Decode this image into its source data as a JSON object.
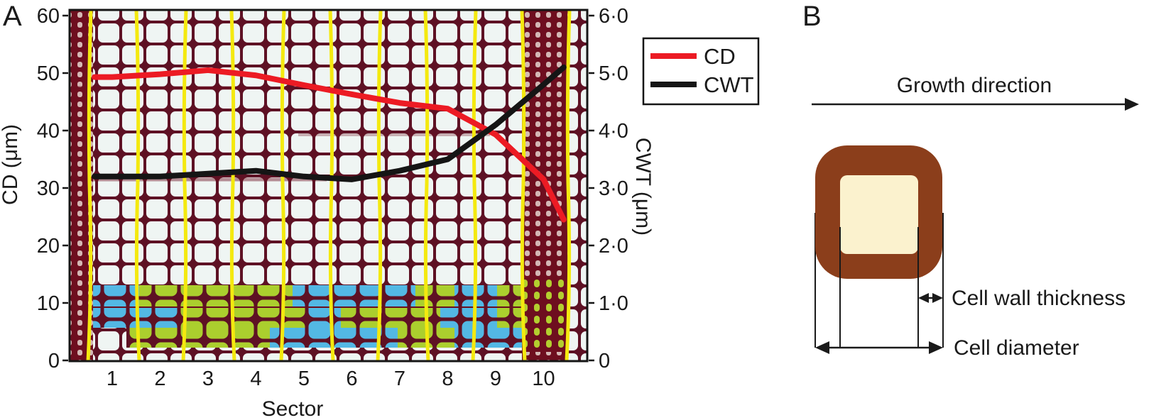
{
  "panel_a": {
    "label": "A",
    "y_left": {
      "title": "CD (μm)",
      "ticks": [
        "60",
        "50",
        "40",
        "30",
        "20",
        "10",
        "0"
      ]
    },
    "y_right": {
      "title": "CWT (μm)",
      "ticks": [
        "6·0",
        "5·0",
        "4·0",
        "3·0",
        "2·0",
        "1·0",
        "0"
      ]
    },
    "x_axis": {
      "title": "Sector",
      "ticks": [
        "1",
        "2",
        "3",
        "4",
        "5",
        "6",
        "7",
        "8",
        "9",
        "10"
      ]
    },
    "legend": [
      {
        "label": "CD",
        "color": "#ec1b24"
      },
      {
        "label": "CWT",
        "color": "#151515"
      }
    ],
    "micrograph_colors": {
      "cell_wall_dark_red": "#5e1124",
      "lumen_light": "#eff5f3",
      "latewood_band": "#6e0e1f",
      "sector_divider_yellow": "#f4e90f",
      "highlight_blue": "#53b8e4",
      "highlight_green": "#abcf2e"
    }
  },
  "panel_b": {
    "label": "B",
    "growth_direction_label": "Growth direction",
    "cell_wall_thickness_label": "Cell wall thickness",
    "cell_diameter_label": "Cell diameter",
    "colors": {
      "wall_brown": "#8b3e1b",
      "lumen_cream": "#fbf2ce"
    }
  },
  "chart_data": {
    "type": "line",
    "x_label": "Sector",
    "x_ticks": [
      1,
      2,
      3,
      4,
      5,
      6,
      7,
      8,
      9,
      10
    ],
    "left_axis": {
      "label": "CD (μm)",
      "range": [
        0,
        60
      ]
    },
    "right_axis": {
      "label": "CWT (μm)",
      "range": [
        0,
        6
      ]
    },
    "legend_position": "top-right-outside",
    "series": [
      {
        "name": "CD",
        "axis": "left",
        "unit": "μm",
        "color": "#ec1b24",
        "points": [
          [
            0.63,
            49.3
          ],
          [
            1,
            49.3
          ],
          [
            2,
            49.8
          ],
          [
            3,
            50.5
          ],
          [
            4,
            49.6
          ],
          [
            5,
            47.9
          ],
          [
            6,
            46.3
          ],
          [
            7,
            44.8
          ],
          [
            8,
            43.8
          ],
          [
            9,
            39.3
          ],
          [
            10,
            31.5
          ],
          [
            10.42,
            24.5
          ]
        ]
      },
      {
        "name": "CWT",
        "axis": "right",
        "unit": "μm",
        "color": "#151515",
        "points": [
          [
            0.63,
            3.2
          ],
          [
            1,
            3.2
          ],
          [
            2,
            3.2
          ],
          [
            3,
            3.25
          ],
          [
            4,
            3.3
          ],
          [
            5,
            3.2
          ],
          [
            6,
            3.15
          ],
          [
            7,
            3.3
          ],
          [
            8,
            3.5
          ],
          [
            9,
            4.1
          ],
          [
            10,
            4.8
          ],
          [
            10.42,
            5.1
          ]
        ]
      }
    ]
  }
}
